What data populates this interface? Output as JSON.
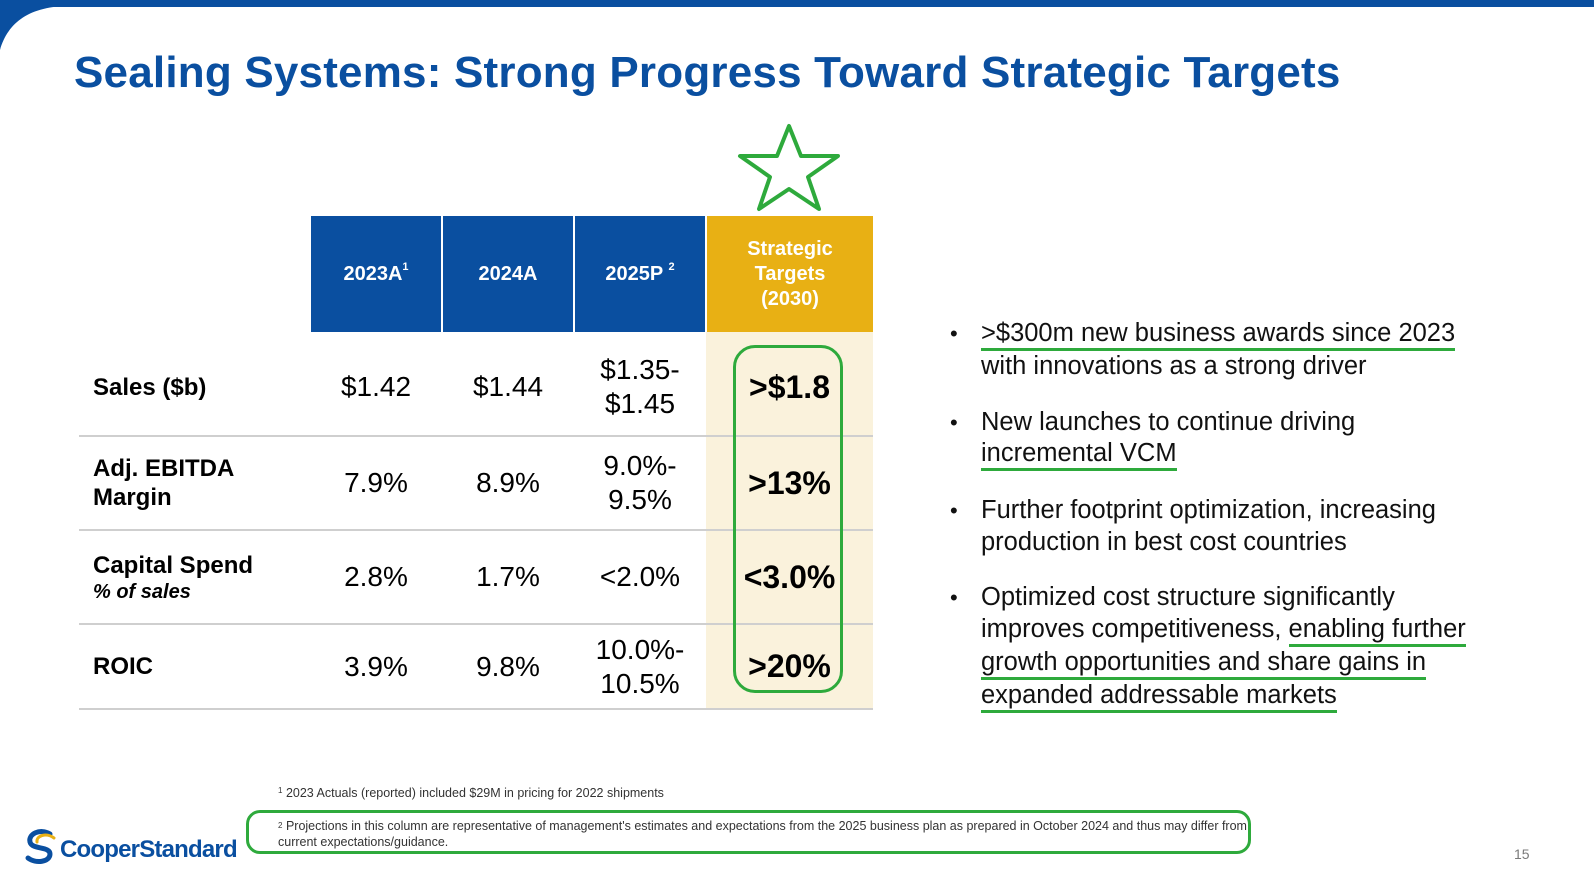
{
  "slide": {
    "title": "Sealing Systems: Strong Progress Toward Strategic Targets",
    "page_number": "15"
  },
  "table": {
    "headers": [
      {
        "label": "2023A",
        "sup": "1"
      },
      {
        "label": "2024A",
        "sup": ""
      },
      {
        "label": "2025P",
        "sup": "2"
      },
      {
        "label": "Strategic Targets (2030)",
        "sup": ""
      }
    ],
    "header_target_lines": [
      "Strategic",
      "Targets",
      "(2030)"
    ],
    "rows": [
      {
        "label": "Sales ($b)",
        "sublabel": "",
        "values": [
          "$1.42",
          "$1.44"
        ],
        "projection": [
          "$1.35-",
          "$1.45"
        ],
        "target": ">$1.8"
      },
      {
        "label_lines": [
          "Adj. EBITDA",
          "Margin"
        ],
        "sublabel": "",
        "values": [
          "7.9%",
          "8.9%"
        ],
        "projection": [
          "9.0%-",
          "9.5%"
        ],
        "target": ">13%"
      },
      {
        "label": "Capital Spend",
        "sublabel": "% of sales",
        "values": [
          "2.8%",
          "1.7%"
        ],
        "projection": [
          "<2.0%"
        ],
        "target": "<3.0%"
      },
      {
        "label": "ROIC",
        "sublabel": "",
        "values": [
          "3.9%",
          "9.8%"
        ],
        "projection": [
          "10.0%-",
          "10.5%"
        ],
        "target": ">20%"
      }
    ]
  },
  "bullets": [
    {
      "lines": [
        ">$300m new business awards since 2023",
        "with innovations as a strong driver"
      ]
    },
    {
      "lines": [
        "New launches to continue driving",
        "incremental VCM"
      ]
    },
    {
      "lines": [
        "Further footprint optimization, increasing",
        "production in best cost countries"
      ]
    },
    {
      "lines": [
        "Optimized cost structure significantly",
        "improves competitiveness, ",
        "enabling further",
        "growth opportunities and share gains in",
        "expanded addressable markets"
      ]
    }
  ],
  "footnotes": {
    "fn1_marker": "1",
    "fn1_text": "2023 Actuals (reported) included $29M in pricing for 2022 shipments",
    "fn2_marker": "2",
    "fn2_text": "Projections in this column are representative of management's estimates and expectations from the 2025 business plan as prepared in October 2024 and thus may differ from current expectations/guidance."
  },
  "logo": {
    "text": "CooperStandard"
  },
  "colors": {
    "brand_blue": "#0a4fa0",
    "target_gold": "#e8b014",
    "target_fill": "#faf2dc",
    "annotation_green": "#2eaa3c"
  },
  "icons": {
    "star": "star-icon",
    "logo_mark": "cooper-standard-logo-icon"
  }
}
